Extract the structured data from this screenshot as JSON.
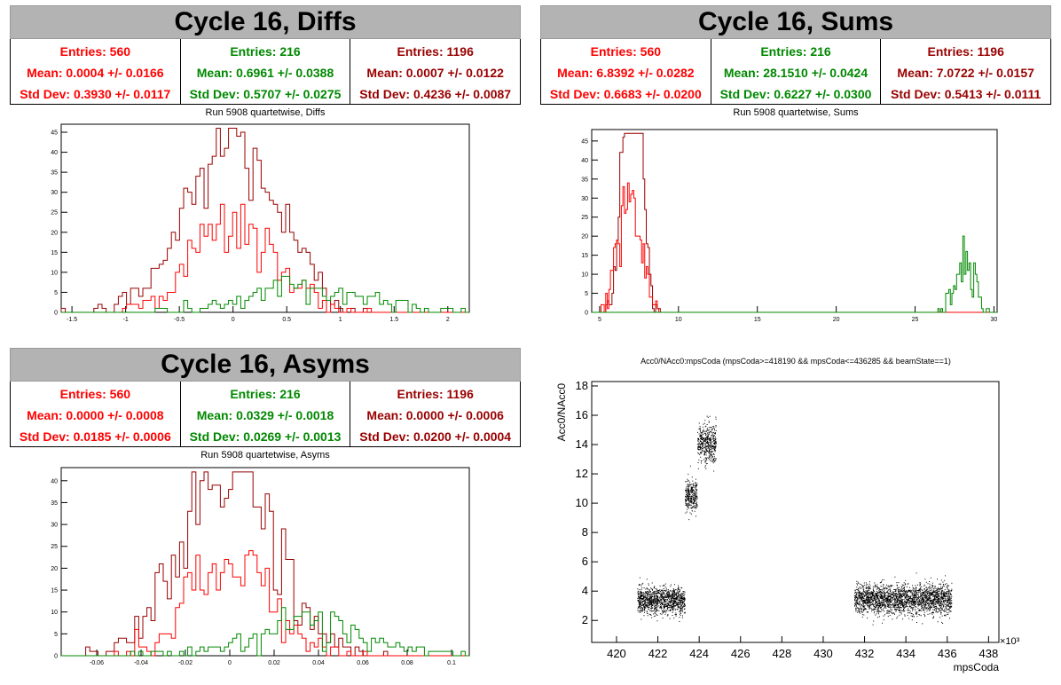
{
  "colors": {
    "c1": "#ff0000",
    "c2": "#008800",
    "c3": "#990000",
    "frame": "#000000",
    "titlebg": "#b3b3b3"
  },
  "panels": {
    "diffs": {
      "title": "Cycle 16, Diffs",
      "subtitle": "Run 5908 quartetwise, Diffs",
      "stats": [
        {
          "entries": "Entries: 560",
          "mean": "Mean: 0.0004 +/- 0.0166",
          "std": "Std Dev: 0.3930 +/- 0.0117"
        },
        {
          "entries": "Entries: 216",
          "mean": "Mean: 0.6961 +/- 0.0388",
          "std": "Std Dev: 0.5707 +/- 0.0275"
        },
        {
          "entries": "Entries: 1196",
          "mean": "Mean: 0.0007 +/- 0.0122",
          "std": "Std Dev: 0.4236 +/- 0.0087"
        }
      ]
    },
    "sums": {
      "title": "Cycle 16, Sums",
      "subtitle": "Run 5908 quartetwise, Sums",
      "stats": [
        {
          "entries": "Entries: 560",
          "mean": "Mean: 6.8392 +/- 0.0282",
          "std": "Std Dev: 0.6683 +/- 0.0200"
        },
        {
          "entries": "Entries: 216",
          "mean": "Mean: 28.1510 +/- 0.0424",
          "std": "Std Dev: 0.6227 +/- 0.0300"
        },
        {
          "entries": "Entries: 1196",
          "mean": "Mean: 7.0722 +/- 0.0157",
          "std": "Std Dev: 0.5413 +/- 0.0111"
        }
      ]
    },
    "asyms": {
      "title": "Cycle 16, Asyms",
      "subtitle": "Run 5908 quartetwise, Asyms",
      "stats": [
        {
          "entries": "Entries: 560",
          "mean": "Mean: 0.0000 +/- 0.0008",
          "std": "Std Dev: 0.0185 +/- 0.0006"
        },
        {
          "entries": "Entries: 216",
          "mean": "Mean: 0.0329 +/- 0.0018",
          "std": "Std Dev: 0.0269 +/- 0.0013"
        },
        {
          "entries": "Entries: 1196",
          "mean": "Mean: 0.0000 +/- 0.0006",
          "std": "Std Dev: 0.0200 +/- 0.0004"
        }
      ]
    },
    "scatter": {
      "title": "Acc0/NAcc0:mpsCoda (mpsCoda>=418190 && mpsCoda<=436285 && beamState==1)"
    }
  },
  "chart_data": [
    {
      "type": "histogram",
      "id": "diffs",
      "title": "Run 5908 quartetwise, Diffs",
      "xlim": [
        -1.6,
        2.2
      ],
      "ylim": [
        0,
        47
      ],
      "x_ticks": [
        -1.5,
        -1,
        -0.5,
        0,
        0.5,
        1,
        1.5,
        2
      ],
      "x_tick_labels": [
        "-1.5",
        "-1",
        "-0.5",
        "0",
        "0.5",
        "1",
        "1.5",
        "2"
      ],
      "y_ticks": [
        0,
        5,
        10,
        15,
        20,
        25,
        30,
        35,
        40,
        45
      ],
      "bins": 100,
      "series": [
        {
          "color": "#990000",
          "mean": 0.0007,
          "std": 0.4236,
          "entries": 1196
        },
        {
          "color": "#ff0000",
          "mean": 0.0004,
          "std": 0.393,
          "entries": 560
        },
        {
          "color": "#008800",
          "mean": 0.6961,
          "std": 0.5707,
          "entries": 216
        }
      ]
    },
    {
      "type": "histogram",
      "id": "sums",
      "title": "Run 5908 quartetwise, Sums",
      "xlim": [
        4.5,
        30.2
      ],
      "ylim": [
        0,
        48
      ],
      "x_ticks": [
        5,
        10,
        15,
        20,
        25,
        30
      ],
      "x_tick_labels": [
        "5",
        "10",
        "15",
        "20",
        "25",
        "30"
      ],
      "y_ticks": [
        0,
        5,
        10,
        15,
        20,
        25,
        30,
        35,
        40,
        45
      ],
      "bins": 260,
      "series": [
        {
          "color": "#990000",
          "mean": 7.0722,
          "std": 0.5413,
          "entries": 1196
        },
        {
          "color": "#ff0000",
          "mean": 6.8392,
          "std": 0.6683,
          "entries": 560
        },
        {
          "color": "#008800",
          "mean": 28.151,
          "std": 0.6227,
          "entries": 216
        }
      ]
    },
    {
      "type": "histogram",
      "id": "asyms",
      "title": "Run 5908 quartetwise, Asyms",
      "xlim": [
        -0.076,
        0.108
      ],
      "ylim": [
        0,
        43
      ],
      "x_ticks": [
        -0.06,
        -0.04,
        -0.02,
        0,
        0.02,
        0.04,
        0.06,
        0.08,
        0.1
      ],
      "x_tick_labels": [
        "-0.06",
        "-0.04",
        "-0.02",
        "0",
        "0.02",
        "0.04",
        "0.06",
        "0.08",
        "0.1"
      ],
      "y_ticks": [
        0,
        5,
        10,
        15,
        20,
        25,
        30,
        35,
        40
      ],
      "bins": 100,
      "series": [
        {
          "color": "#990000",
          "mean": 0.0,
          "std": 0.02,
          "entries": 1196
        },
        {
          "color": "#ff0000",
          "mean": 0.0,
          "std": 0.0185,
          "entries": 560
        },
        {
          "color": "#008800",
          "mean": 0.0329,
          "std": 0.0269,
          "entries": 216
        }
      ]
    },
    {
      "type": "scatter",
      "id": "scatter",
      "title": "Acc0/NAcc0:mpsCoda (mpsCoda>=418190 && mpsCoda<=436285 && beamState==1)",
      "xlabel": "mpsCoda",
      "ylabel": "Acc0/NAcc0",
      "x_multiplier": "×10³",
      "xlim": [
        418.8,
        438.5
      ],
      "ylim": [
        0.5,
        18.3
      ],
      "x_ticks": [
        420,
        422,
        424,
        426,
        428,
        430,
        432,
        434,
        436,
        438
      ],
      "x_tick_labels": [
        "420",
        "422",
        "424",
        "426",
        "428",
        "430",
        "432",
        "434",
        "436",
        "438"
      ],
      "y_ticks": [
        2,
        4,
        6,
        8,
        10,
        12,
        14,
        16,
        18
      ],
      "y_tick_labels": [
        "2",
        "4",
        "6",
        "8",
        "10",
        "12",
        "14",
        "16",
        "18"
      ],
      "clusters": [
        {
          "x": [
            421.0,
            423.3
          ],
          "y_center": 3.4,
          "y_spread": 0.45
        },
        {
          "x": [
            423.3,
            423.9
          ],
          "y_center": 10.5,
          "y_spread": 0.55
        },
        {
          "x": [
            423.9,
            424.8
          ],
          "y_center": 14.1,
          "y_spread": 0.65
        },
        {
          "x": [
            431.5,
            436.2
          ],
          "y_center": 3.45,
          "y_spread": 0.5
        }
      ]
    }
  ]
}
